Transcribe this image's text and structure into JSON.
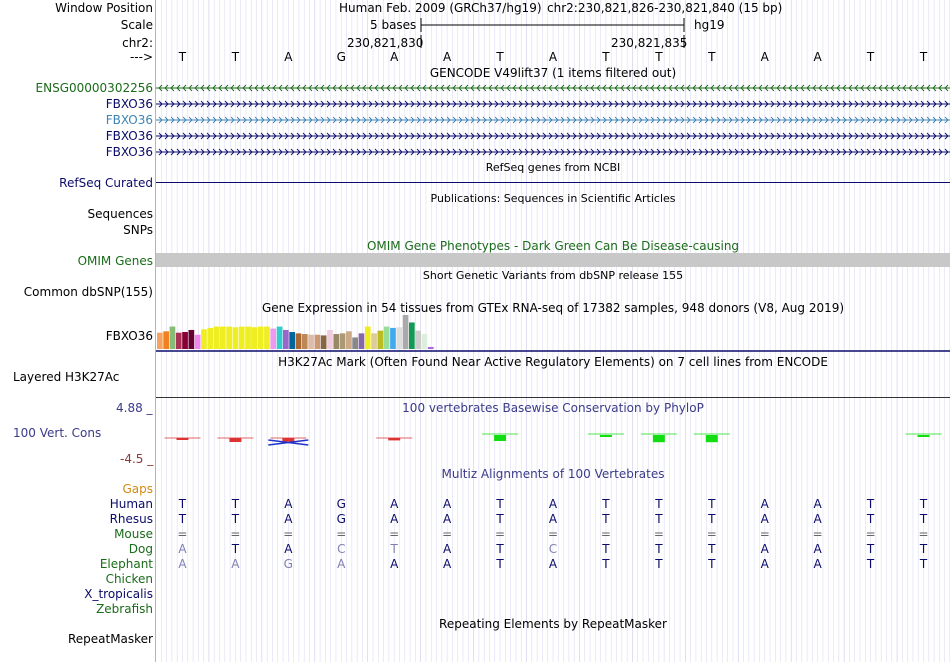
{
  "header": {
    "window_position_label": "Window Position",
    "assembly": "Human Feb. 2009 (GRCh37/hg19)",
    "position": "chr2:230,821,826-230,821,840 (15 bp)",
    "scale_label": "Scale",
    "scale_value": "5 bases",
    "scale_db": "hg19",
    "chrom_label": "chr2:",
    "coord1": "230,821,830",
    "coord2": "230,821,835",
    "strand_label": "--->"
  },
  "sequence": [
    "T",
    "T",
    "A",
    "G",
    "A",
    "A",
    "T",
    "A",
    "T",
    "T",
    "T",
    "A",
    "A",
    "T",
    "T"
  ],
  "gencode": {
    "title": "GENCODE V49lift37 (1 items filtered out)",
    "genes": [
      {
        "name": "ENSG00000302256",
        "color": "#1a6b1a"
      },
      {
        "name": "FBXO36",
        "color": "#0b0b6b"
      },
      {
        "name": "FBXO36",
        "color": "#3c84b4"
      },
      {
        "name": "FBXO36",
        "color": "#0b0b6b"
      },
      {
        "name": "FBXO36",
        "color": "#0b0b6b"
      }
    ]
  },
  "refseq": {
    "title": "RefSeq genes from NCBI",
    "label": "RefSeq Curated"
  },
  "publications": {
    "title": "Publications: Sequences in Scientific Articles",
    "label": "Sequences",
    "label2": "SNPs"
  },
  "omim": {
    "title": "OMIM Gene Phenotypes - Dark Green Can Be Disease-causing",
    "label": "OMIM Genes"
  },
  "dbsnp": {
    "title": "Short Genetic Variants from dbSNP release 155",
    "label": "Common dbSNP(155)"
  },
  "gtex": {
    "title": "Gene Expression in 54 tissues from GTEx RNA-seq of 17382 samples, 948 donors (V8, Aug 2019)",
    "label": "FBXO36",
    "bars": [
      {
        "h": 0.48,
        "c": "#f4a460"
      },
      {
        "h": 0.52,
        "c": "#f08020"
      },
      {
        "h": 0.66,
        "c": "#88bb77"
      },
      {
        "h": 0.48,
        "c": "#aa3355"
      },
      {
        "h": 0.5,
        "c": "#880033"
      },
      {
        "h": 0.56,
        "c": "#660033"
      },
      {
        "h": 0.42,
        "c": "#ee88ee"
      },
      {
        "h": 0.58,
        "c": "#eeee22"
      },
      {
        "h": 0.62,
        "c": "#eeee22"
      },
      {
        "h": 0.66,
        "c": "#eeee22"
      },
      {
        "h": 0.66,
        "c": "#eeee22"
      },
      {
        "h": 0.66,
        "c": "#eeee22"
      },
      {
        "h": 0.64,
        "c": "#eeee22"
      },
      {
        "h": 0.66,
        "c": "#eeee22"
      },
      {
        "h": 0.66,
        "c": "#eeee22"
      },
      {
        "h": 0.64,
        "c": "#eeee22"
      },
      {
        "h": 0.66,
        "c": "#eeee22"
      },
      {
        "h": 0.66,
        "c": "#eeee22"
      },
      {
        "h": 0.6,
        "c": "#ee99ee"
      },
      {
        "h": 0.66,
        "c": "#33cccc"
      },
      {
        "h": 0.56,
        "c": "#9966cc"
      },
      {
        "h": 0.5,
        "c": "#006699"
      },
      {
        "h": 0.46,
        "c": "#aa6633"
      },
      {
        "h": 0.44,
        "c": "#bb8855"
      },
      {
        "h": 0.42,
        "c": "#ddbbaa"
      },
      {
        "h": 0.42,
        "c": "#cc9977"
      },
      {
        "h": 0.4,
        "c": "#886644"
      },
      {
        "h": 0.56,
        "c": "#eeccdd"
      },
      {
        "h": 0.44,
        "c": "#998866"
      },
      {
        "h": 0.46,
        "c": "#aa9977"
      },
      {
        "h": 0.52,
        "c": "#ccaa88"
      },
      {
        "h": 0.34,
        "c": "#888888"
      },
      {
        "h": 0.46,
        "c": "#8866aa"
      },
      {
        "h": 0.66,
        "c": "#eeee22"
      },
      {
        "h": 0.46,
        "c": "#ddcc99"
      },
      {
        "h": 0.54,
        "c": "#bbbb22"
      },
      {
        "h": 0.66,
        "c": "#99dd99"
      },
      {
        "h": 0.62,
        "c": "#44aaee"
      },
      {
        "h": 0.64,
        "c": "#dddddd"
      },
      {
        "h": 1.0,
        "c": "#aaaaaa"
      },
      {
        "h": 0.78,
        "c": "#119955"
      },
      {
        "h": 0.54,
        "c": "#cccccc"
      },
      {
        "h": 0.44,
        "c": "#ddeedd"
      },
      {
        "h": 0.06,
        "c": "#aa66dd"
      }
    ]
  },
  "h3k27ac": {
    "title": "H3K27Ac Mark (Often Found Near Active Regulatory Elements) on 7 cell lines from ENCODE",
    "label": "Layered H3K27Ac"
  },
  "cons": {
    "title": "100 vertebrates Basewise Conservation by PhyloP",
    "label": "100 Vert. Cons",
    "ymax": "4.88 _",
    "ymin": "-4.5 _",
    "scores": [
      -0.1,
      -0.5,
      -0.3,
      0,
      -0.2,
      0,
      0.5,
      0,
      0.1,
      0.6,
      0.6,
      0,
      0,
      0,
      0.1
    ],
    "pos_color": "#11dd11",
    "neg_color": "#dd3333"
  },
  "multiz": {
    "title": "Multiz Alignments of 100 Vertebrates",
    "gaps_label": "Gaps",
    "species": [
      {
        "name": "Human",
        "color": "#0b0b6b",
        "bases": [
          "T",
          "T",
          "A",
          "G",
          "A",
          "A",
          "T",
          "A",
          "T",
          "T",
          "T",
          "A",
          "A",
          "T",
          "T"
        ]
      },
      {
        "name": "Rhesus",
        "color": "#0b0b6b",
        "bases": [
          "T",
          "T",
          "A",
          "G",
          "A",
          "A",
          "T",
          "A",
          "T",
          "T",
          "T",
          "A",
          "A",
          "T",
          "T"
        ]
      },
      {
        "name": "Mouse",
        "color": "#1a6b1a",
        "bases": [
          "=",
          "=",
          "=",
          "=",
          "=",
          "=",
          "=",
          "=",
          "=",
          "=",
          "=",
          "=",
          "=",
          "=",
          "="
        ]
      },
      {
        "name": "Dog",
        "color": "#1a6b1a",
        "bases": [
          "A",
          "T",
          "A",
          "C",
          "T",
          "A",
          "T",
          "C",
          "T",
          "T",
          "T",
          "A",
          "A",
          "T",
          "T"
        ]
      },
      {
        "name": "Elephant",
        "color": "#1a6b1a",
        "bases": [
          "A",
          "A",
          "G",
          "A",
          "A",
          "A",
          "T",
          "A",
          "T",
          "T",
          "T",
          "A",
          "A",
          "T",
          "T"
        ]
      },
      {
        "name": "Chicken",
        "color": "#1a6b1a",
        "bases": []
      },
      {
        "name": "X_tropicalis",
        "color": "#0b0b6b",
        "bases": []
      },
      {
        "name": "Zebrafish",
        "color": "#1a6b1a",
        "bases": []
      }
    ]
  },
  "repeatmasker": {
    "title": "Repeating Elements by RepeatMasker",
    "label": "RepeatMasker"
  }
}
